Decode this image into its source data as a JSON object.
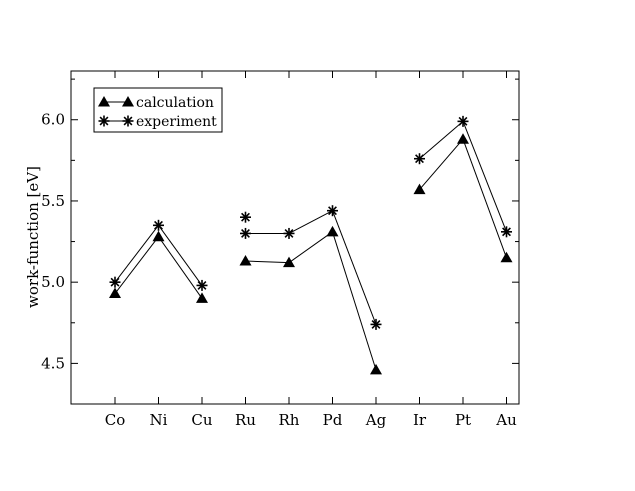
{
  "chart_data": {
    "type": "line",
    "title": "",
    "xlabel": "",
    "ylabel": "work-function [eV]",
    "ylim": [
      4.25,
      6.3
    ],
    "yticks": [
      4.5,
      5.0,
      5.5,
      6.0
    ],
    "ytick_labels": [
      "4.5",
      "5.0",
      "5.5",
      "6.0"
    ],
    "categories": [
      "Co",
      "Ni",
      "Cu",
      "Ru",
      "Rh",
      "Pd",
      "Ag",
      "Ir",
      "Pt",
      "Au"
    ],
    "grid": false,
    "legend_position": "top-left",
    "series": [
      {
        "name": "calculation",
        "marker": "triangle",
        "points": [
          {
            "cat": "Co",
            "y": 4.93
          },
          {
            "cat": "Ni",
            "y": 5.28
          },
          {
            "cat": "Cu",
            "y": 4.9
          },
          {
            "cat": "Ru",
            "y": 5.13
          },
          {
            "cat": "Rh",
            "y": 5.12
          },
          {
            "cat": "Pd",
            "y": 5.31
          },
          {
            "cat": "Ag",
            "y": 4.46
          },
          {
            "cat": "Ir",
            "y": 5.57
          },
          {
            "cat": "Pt",
            "y": 5.88
          },
          {
            "cat": "Au",
            "y": 5.15
          }
        ],
        "segments": [
          [
            "Co",
            "Ni"
          ],
          [
            "Ni",
            "Cu"
          ],
          [
            "Ru",
            "Rh"
          ],
          [
            "Rh",
            "Pd"
          ],
          [
            "Pd",
            "Ag"
          ],
          [
            "Ir",
            "Pt"
          ],
          [
            "Pt",
            "Au"
          ]
        ]
      },
      {
        "name": "experiment",
        "marker": "star",
        "points": [
          {
            "cat": "Co",
            "y": 5.0
          },
          {
            "cat": "Ni",
            "y": 5.35
          },
          {
            "cat": "Cu",
            "y": 4.98
          },
          {
            "cat": "Ru",
            "y": 5.4
          },
          {
            "cat": "Ru",
            "y": 5.3
          },
          {
            "cat": "Rh",
            "y": 5.3
          },
          {
            "cat": "Pd",
            "y": 5.44
          },
          {
            "cat": "Ag",
            "y": 4.74
          },
          {
            "cat": "Ir",
            "y": 5.76
          },
          {
            "cat": "Pt",
            "y": 5.99
          },
          {
            "cat": "Au",
            "y": 5.31
          }
        ],
        "segments": [
          [
            0,
            1
          ],
          [
            1,
            2
          ],
          [
            4,
            5
          ],
          [
            5,
            6
          ],
          [
            6,
            7
          ],
          [
            8,
            9
          ],
          [
            9,
            10
          ]
        ]
      }
    ]
  }
}
